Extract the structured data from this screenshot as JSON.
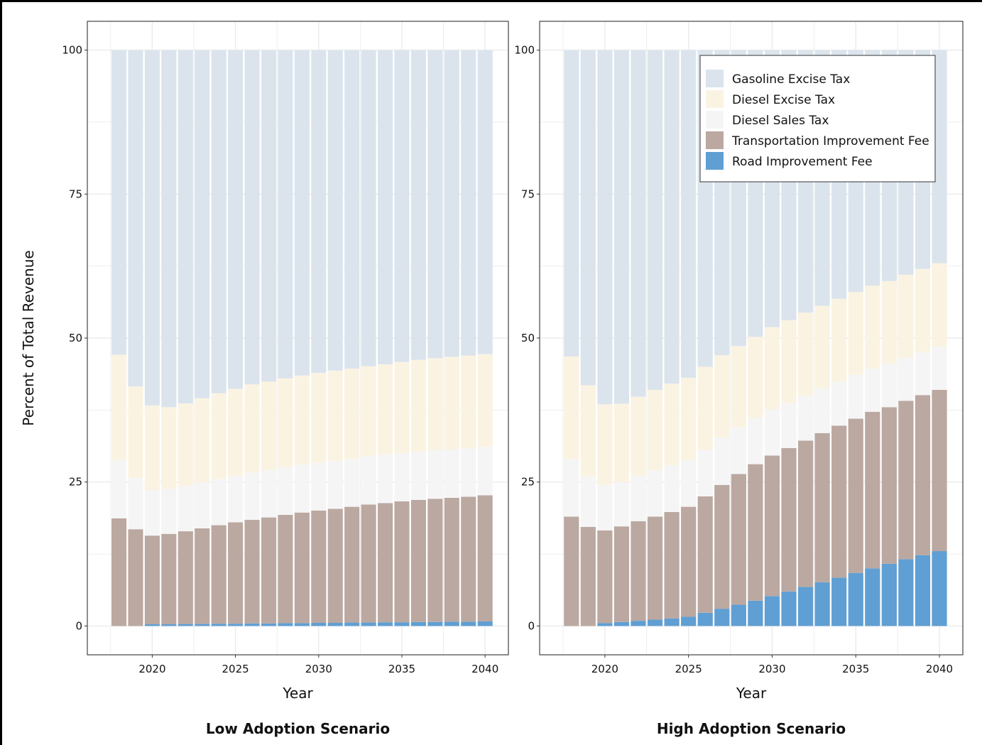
{
  "colors": {
    "Gasoline Excise Tax": "#dbe4ed",
    "Diesel Excise Tax": "#fbf3e2",
    "Diesel Sales Tax": "#f5f5f5",
    "Transportation Improvement Fee": "#bba8a1",
    "Road Improvement Fee": "#5f9fd3",
    "grid": "#ebebeb",
    "panel_border": "#444444"
  },
  "chart_data": [
    {
      "type": "bar",
      "stacked": true,
      "caption": "Low Adoption Scenario",
      "xlabel": "Year",
      "ylabel": "Percent of Total Revenue",
      "x": [
        2018,
        2019,
        2020,
        2021,
        2022,
        2023,
        2024,
        2025,
        2026,
        2027,
        2028,
        2029,
        2030,
        2031,
        2032,
        2033,
        2034,
        2035,
        2036,
        2037,
        2038,
        2039,
        2040
      ],
      "xticks": [
        2020,
        2025,
        2030,
        2035,
        2040
      ],
      "yticks": [
        0,
        25,
        50,
        75,
        100
      ],
      "ylim": [
        -5,
        105
      ],
      "xlim": [
        2016.1,
        2041.4
      ],
      "grid": true,
      "series": [
        {
          "name": "Road Improvement Fee",
          "values": [
            0,
            0,
            0.3,
            0.3,
            0.35,
            0.35,
            0.4,
            0.4,
            0.45,
            0.45,
            0.5,
            0.5,
            0.55,
            0.55,
            0.6,
            0.6,
            0.65,
            0.65,
            0.7,
            0.7,
            0.75,
            0.75,
            0.8
          ]
        },
        {
          "name": "Transportation Improvement Fee",
          "values": [
            18.7,
            16.8,
            15.4,
            15.7,
            16.1,
            16.6,
            17.1,
            17.6,
            18.0,
            18.4,
            18.8,
            19.2,
            19.5,
            19.8,
            20.1,
            20.5,
            20.7,
            21.0,
            21.2,
            21.4,
            21.5,
            21.7,
            21.9
          ]
        },
        {
          "name": "Diesel Sales Tax",
          "values": [
            10.1,
            8.9,
            7.9,
            7.8,
            7.9,
            8.0,
            8.0,
            8.1,
            8.2,
            8.2,
            8.2,
            8.3,
            8.3,
            8.3,
            8.3,
            8.4,
            8.4,
            8.4,
            8.4,
            8.4,
            8.4,
            8.4,
            8.4
          ]
        },
        {
          "name": "Diesel Excise Tax",
          "values": [
            18.3,
            15.9,
            14.7,
            14.2,
            14.3,
            14.6,
            14.9,
            15.1,
            15.3,
            15.4,
            15.5,
            15.5,
            15.6,
            15.7,
            15.7,
            15.6,
            15.7,
            15.8,
            15.9,
            16.0,
            16.1,
            16.1,
            16.1
          ]
        },
        {
          "name": "Gasoline Excise Tax",
          "values": [
            52.9,
            58.4,
            61.7,
            62.0,
            61.35,
            60.45,
            59.6,
            58.8,
            58.05,
            57.55,
            57.0,
            56.5,
            56.05,
            55.65,
            55.3,
            54.9,
            54.55,
            54.15,
            53.8,
            53.5,
            53.25,
            53.05,
            52.8
          ]
        }
      ]
    },
    {
      "type": "bar",
      "stacked": true,
      "caption": "High Adoption Scenario",
      "xlabel": "Year",
      "ylabel": "",
      "x": [
        2018,
        2019,
        2020,
        2021,
        2022,
        2023,
        2024,
        2025,
        2026,
        2027,
        2028,
        2029,
        2030,
        2031,
        2032,
        2033,
        2034,
        2035,
        2036,
        2037,
        2038,
        2039,
        2040
      ],
      "xticks": [
        2020,
        2025,
        2030,
        2035,
        2040
      ],
      "yticks": [
        0,
        25,
        50,
        75,
        100
      ],
      "ylim": [
        -5,
        105
      ],
      "xlim": [
        2016.1,
        2041.4
      ],
      "grid": true,
      "legend": "top-right",
      "series": [
        {
          "name": "Road Improvement Fee",
          "values": [
            0,
            0,
            0.5,
            0.7,
            0.9,
            1.1,
            1.3,
            1.6,
            2.3,
            3.0,
            3.7,
            4.4,
            5.2,
            6.0,
            6.8,
            7.6,
            8.4,
            9.2,
            10.0,
            10.8,
            11.6,
            12.3,
            13.0
          ]
        },
        {
          "name": "Transportation Improvement Fee",
          "values": [
            19.0,
            17.2,
            16.1,
            16.6,
            17.3,
            17.9,
            18.5,
            19.1,
            20.2,
            21.5,
            22.7,
            23.7,
            24.4,
            24.9,
            25.4,
            25.9,
            26.4,
            26.8,
            27.2,
            27.2,
            27.5,
            27.8,
            28.0
          ]
        },
        {
          "name": "Diesel Sales Tax",
          "values": [
            10.0,
            8.8,
            7.9,
            7.7,
            7.9,
            8.0,
            8.1,
            8.1,
            8.1,
            8.2,
            8.1,
            8.0,
            8.0,
            7.8,
            7.8,
            7.8,
            7.6,
            7.6,
            7.5,
            7.5,
            7.5,
            7.5,
            7.5
          ]
        },
        {
          "name": "Diesel Excise Tax",
          "values": [
            17.8,
            15.8,
            14.0,
            13.6,
            13.7,
            14.0,
            14.2,
            14.3,
            14.4,
            14.3,
            14.1,
            14.1,
            14.3,
            14.4,
            14.4,
            14.3,
            14.4,
            14.4,
            14.4,
            14.4,
            14.4,
            14.4,
            14.5
          ]
        },
        {
          "name": "Gasoline Excise Tax",
          "values": [
            53.2,
            58.2,
            61.5,
            61.4,
            60.2,
            59.0,
            57.9,
            56.9,
            55.0,
            53.0,
            51.4,
            49.8,
            48.1,
            46.9,
            45.6,
            44.4,
            43.2,
            42.0,
            40.9,
            40.1,
            39.0,
            38.0,
            37.0
          ]
        }
      ]
    }
  ],
  "legend": {
    "entries": [
      "Gasoline Excise Tax",
      "Diesel Excise Tax",
      "Diesel Sales Tax",
      "Transportation Improvement Fee",
      "Road Improvement Fee"
    ]
  }
}
